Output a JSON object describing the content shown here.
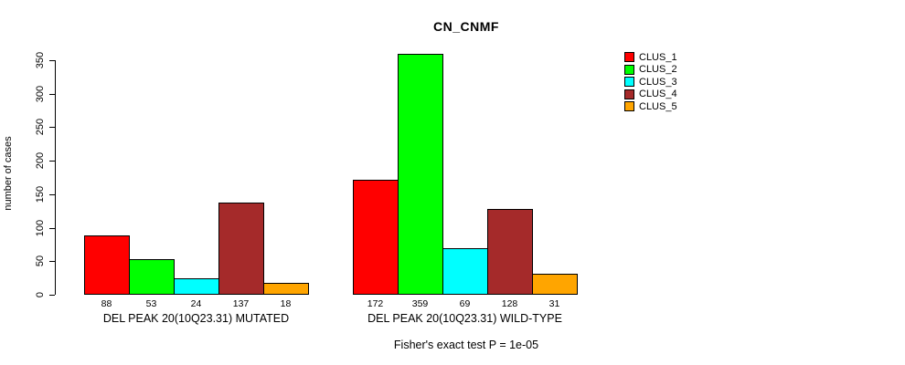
{
  "chart_data": {
    "type": "bar",
    "title": "CN_CNMF",
    "xlabel": "",
    "ylabel": "number of cases",
    "ylim": [
      0,
      350
    ],
    "yticks": [
      0,
      50,
      100,
      150,
      200,
      250,
      300,
      350
    ],
    "grid": false,
    "legend_position": "top-right",
    "categories": [
      "DEL PEAK 20(10Q23.31) MUTATED",
      "DEL PEAK 20(10Q23.31) WILD-TYPE"
    ],
    "series": [
      {
        "name": "CLUS_1",
        "color": "#FF0000",
        "values": [
          88,
          172
        ]
      },
      {
        "name": "CLUS_2",
        "color": "#00FF00",
        "values": [
          53,
          359
        ]
      },
      {
        "name": "CLUS_3",
        "color": "#00FFFF",
        "values": [
          24,
          69
        ]
      },
      {
        "name": "CLUS_4",
        "color": "#A52A2A",
        "values": [
          137,
          128
        ]
      },
      {
        "name": "CLUS_5",
        "color": "#FFA500",
        "values": [
          18,
          31
        ]
      }
    ],
    "bar_value_labels": true,
    "annotation": "Fisher's exact test P = 1e-05"
  },
  "colors": {
    "background": "#FFFFFF",
    "axis": "#000000",
    "text": "#000000"
  }
}
